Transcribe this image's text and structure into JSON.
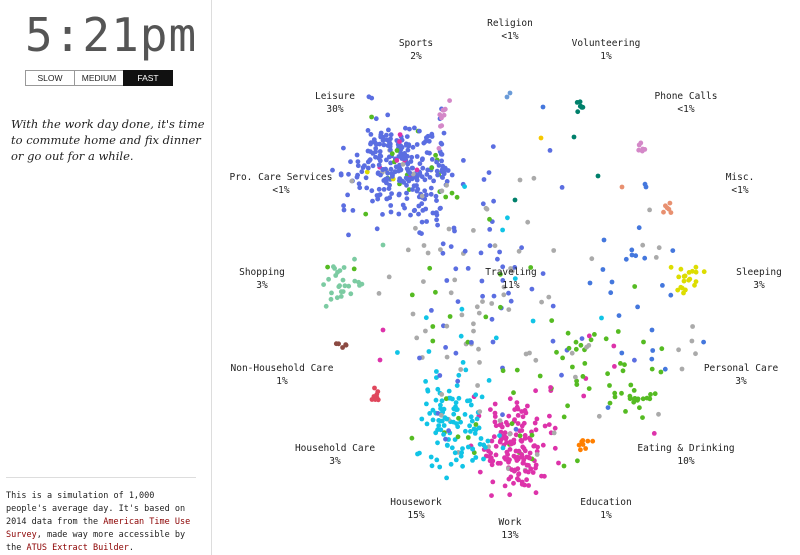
{
  "clock": {
    "time": "5:21pm"
  },
  "speed_buttons": [
    {
      "label": "SLOW",
      "active": false
    },
    {
      "label": "MEDIUM",
      "active": false
    },
    {
      "label": "FAST",
      "active": true
    }
  ],
  "description": "With the work day done, it's time to commute home and fix dinner or go out for a while.",
  "footer": {
    "p1": "This is a simulation of 1,000 people's average day. It's based on 2014 data from the ",
    "link1": "American Time Use Survey",
    "p2": ", made way more accessible by the ",
    "link2": "ATUS Extract Builder",
    "p3": "."
  },
  "activities": [
    {
      "key": "religion",
      "name": "Religion",
      "pct": "<1%",
      "color": "#6a9bd8"
    },
    {
      "key": "sports",
      "name": "Sports",
      "pct": "2%",
      "color": "#f6c800"
    },
    {
      "key": "volunteering",
      "name": "Volunteering",
      "pct": "1%",
      "color": "#00806b"
    },
    {
      "key": "leisure",
      "name": "Leisure",
      "pct": "30%",
      "color": "#5b6ee1"
    },
    {
      "key": "phone",
      "name": "Phone Calls",
      "pct": "<1%",
      "color": "#d488c8"
    },
    {
      "key": "pro_care",
      "name": "Pro. Care Services",
      "pct": "<1%",
      "color": "#e7a0b0"
    },
    {
      "key": "misc",
      "name": "Misc.",
      "pct": "<1%",
      "color": "#e89070"
    },
    {
      "key": "shopping",
      "name": "Shopping",
      "pct": "3%",
      "color": "#7ccba2"
    },
    {
      "key": "traveling",
      "name": "Traveling",
      "pct": "11%",
      "color": "#aaaaaa"
    },
    {
      "key": "sleeping",
      "name": "Sleeping",
      "pct": "3%",
      "color": "#dddd00"
    },
    {
      "key": "nonhh_care",
      "name": "Non-Household Care",
      "pct": "1%",
      "color": "#8b4a42"
    },
    {
      "key": "personal",
      "name": "Personal Care",
      "pct": "3%",
      "color": "#4477dd"
    },
    {
      "key": "hh_care",
      "name": "Household Care",
      "pct": "3%",
      "color": "#e0475c"
    },
    {
      "key": "eating",
      "name": "Eating & Drinking",
      "pct": "10%",
      "color": "#55bb22"
    },
    {
      "key": "housework",
      "name": "Housework",
      "pct": "15%",
      "color": "#11c4e6"
    },
    {
      "key": "education",
      "name": "Education",
      "pct": "1%",
      "color": "#ff7f00"
    },
    {
      "key": "work",
      "name": "Work",
      "pct": "13%",
      "color": "#dd33aa"
    }
  ]
}
